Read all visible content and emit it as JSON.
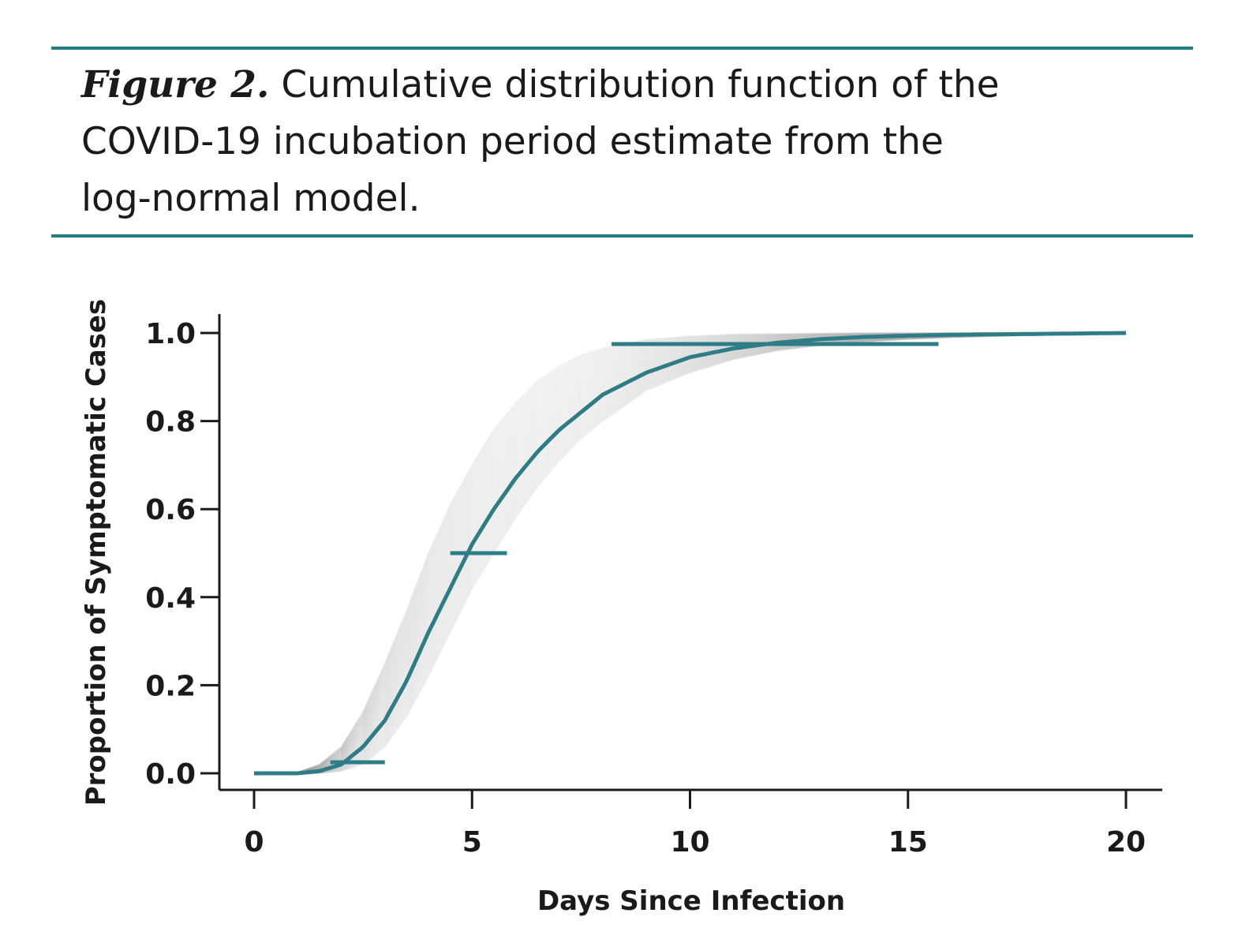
{
  "caption": {
    "label": "Figure 2.",
    "text_line1": "Cumulative distribution function of the",
    "text_line2": "COVID-19 incubation period estimate from the",
    "text_line3": "log-normal model."
  },
  "colors": {
    "accent": "#2e7d86",
    "rule": "#1f7f86",
    "uncertainty_curves": "#9a9a9a",
    "axis": "#1a1a1a"
  },
  "chart_data": {
    "type": "line",
    "xlabel": "Days Since Infection",
    "ylabel": "Proportion of Symptomatic Cases",
    "xlim": [
      0,
      20
    ],
    "ylim": [
      0,
      1.0
    ],
    "xticks": [
      0,
      5,
      10,
      15,
      20
    ],
    "xtick_labels": [
      "0",
      "5",
      "10",
      "15",
      "20"
    ],
    "yticks": [
      0.0,
      0.2,
      0.4,
      0.6,
      0.8,
      1.0
    ],
    "ytick_labels": [
      "0.0",
      "0.2",
      "0.4",
      "0.6",
      "0.8",
      "1.0"
    ],
    "grid": false,
    "series": [
      {
        "x": [
          0,
          1,
          1.5,
          2,
          2.5,
          3,
          3.5,
          4,
          4.5,
          5,
          5.5,
          6,
          6.5,
          7,
          7.5,
          8,
          9,
          10,
          11,
          12,
          13,
          14,
          15,
          16,
          17,
          18,
          19,
          20
        ],
        "values": [
          0.0,
          0.0,
          0.005,
          0.02,
          0.06,
          0.12,
          0.21,
          0.32,
          0.42,
          0.52,
          0.6,
          0.67,
          0.73,
          0.78,
          0.82,
          0.86,
          0.91,
          0.945,
          0.965,
          0.978,
          0.986,
          0.991,
          0.994,
          0.996,
          0.997,
          0.998,
          0.999,
          1.0
        ]
      }
    ],
    "uncertainty_band": {
      "description_count": 100,
      "lower": [
        0,
        0,
        0.0,
        0.005,
        0.02,
        0.06,
        0.13,
        0.22,
        0.32,
        0.42,
        0.5,
        0.58,
        0.65,
        0.71,
        0.76,
        0.8,
        0.87,
        0.91,
        0.94,
        0.96,
        0.972,
        0.98,
        0.986,
        0.99,
        0.993,
        0.995,
        0.997,
        0.998
      ],
      "upper": [
        0,
        0.002,
        0.02,
        0.06,
        0.14,
        0.25,
        0.37,
        0.5,
        0.61,
        0.7,
        0.78,
        0.84,
        0.89,
        0.925,
        0.95,
        0.965,
        0.985,
        0.993,
        0.997,
        0.998,
        0.999,
        1.0,
        1.0,
        1.0,
        1.0,
        1.0,
        1.0,
        1.0
      ]
    },
    "interval_markers": [
      {
        "y": 0.025,
        "x_start": 1.75,
        "x_end": 3.0
      },
      {
        "y": 0.5,
        "x_start": 4.5,
        "x_end": 5.8
      },
      {
        "y": 0.975,
        "x_start": 8.2,
        "x_end": 15.7
      }
    ]
  }
}
